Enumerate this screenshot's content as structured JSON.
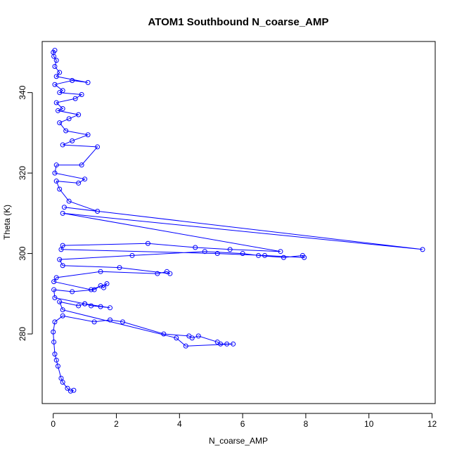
{
  "chart_data": {
    "type": "line",
    "title": "ATOM1 Southbound N_coarse_AMP",
    "xlabel": "N_coarse_AMP",
    "ylabel": "Theta (K)",
    "xlim": [
      -0.35,
      12.1
    ],
    "ylim": [
      262.7,
      352.7
    ],
    "x_ticks": [
      0,
      2,
      4,
      6,
      8,
      10,
      12
    ],
    "y_ticks": [
      280,
      300,
      320,
      340
    ],
    "grid": false,
    "legend": "none",
    "series_color": "#0000ff",
    "markers": "open-circle",
    "series": [
      {
        "x": [
          0.65,
          0.55,
          0.45,
          0.3,
          0.25,
          0.15,
          0.1,
          0.05,
          0.02,
          0.0,
          0.05,
          0.3,
          1.3,
          1.8,
          2.2,
          3.5,
          4.3,
          4.4,
          4.6,
          5.2,
          5.3,
          5.5,
          5.7,
          4.2,
          3.9,
          0.3,
          0.2,
          0.8,
          1.0,
          1.2,
          1.5,
          1.8,
          1.0,
          0.05,
          0.02,
          0.6,
          1.3,
          1.5,
          1.6,
          1.7,
          1.2,
          0.02,
          0.1,
          1.5,
          3.3,
          3.6,
          3.7,
          2.1,
          0.3,
          0.2,
          2.5,
          4.8,
          6.0,
          6.5,
          7.3,
          7.9,
          7.95,
          6.7,
          5.2,
          0.25,
          0.3,
          3.0,
          4.5,
          5.6,
          7.2,
          0.3,
          11.7,
          0.35,
          1.4,
          0.5,
          0.2,
          0.1,
          0.8,
          1.0,
          0.05,
          0.1,
          0.9,
          1.4,
          0.3,
          0.6,
          1.1,
          0.4,
          0.2,
          0.5,
          0.8,
          0.15,
          0.3,
          0.1,
          0.7,
          0.9,
          0.2,
          0.3,
          0.05,
          0.6,
          1.1,
          0.1,
          0.2,
          0.05,
          0.1,
          0.02,
          0.0,
          0.05
        ],
        "y": [
          266.0,
          265.8,
          266.5,
          268.0,
          269.0,
          272.0,
          273.5,
          275.0,
          278.0,
          280.5,
          283.0,
          284.5,
          283.0,
          283.5,
          283.0,
          280.0,
          279.5,
          279.0,
          279.5,
          278.0,
          277.5,
          277.5,
          277.5,
          277.0,
          279.0,
          286.0,
          288.0,
          287.0,
          287.5,
          287.0,
          286.8,
          286.5,
          287.5,
          289.0,
          291.0,
          290.5,
          291.0,
          292.0,
          291.5,
          292.5,
          291.0,
          293.0,
          294.0,
          295.5,
          295.0,
          295.5,
          295.0,
          296.5,
          297.0,
          298.5,
          299.5,
          300.5,
          300.0,
          299.5,
          299.0,
          299.5,
          299.0,
          299.5,
          300.0,
          301.0,
          302.0,
          302.5,
          301.5,
          301.0,
          300.5,
          310.0,
          301.0,
          311.5,
          310.5,
          313.0,
          316.0,
          318.0,
          317.5,
          318.5,
          320.0,
          322.0,
          322.0,
          326.5,
          327.0,
          328.0,
          329.5,
          330.5,
          332.5,
          333.5,
          334.5,
          335.5,
          336.0,
          337.5,
          338.5,
          339.5,
          340.0,
          340.5,
          342.0,
          343.0,
          342.5,
          344.0,
          345.0,
          346.5,
          348.0,
          349.0,
          350.0,
          350.5
        ]
      }
    ]
  }
}
